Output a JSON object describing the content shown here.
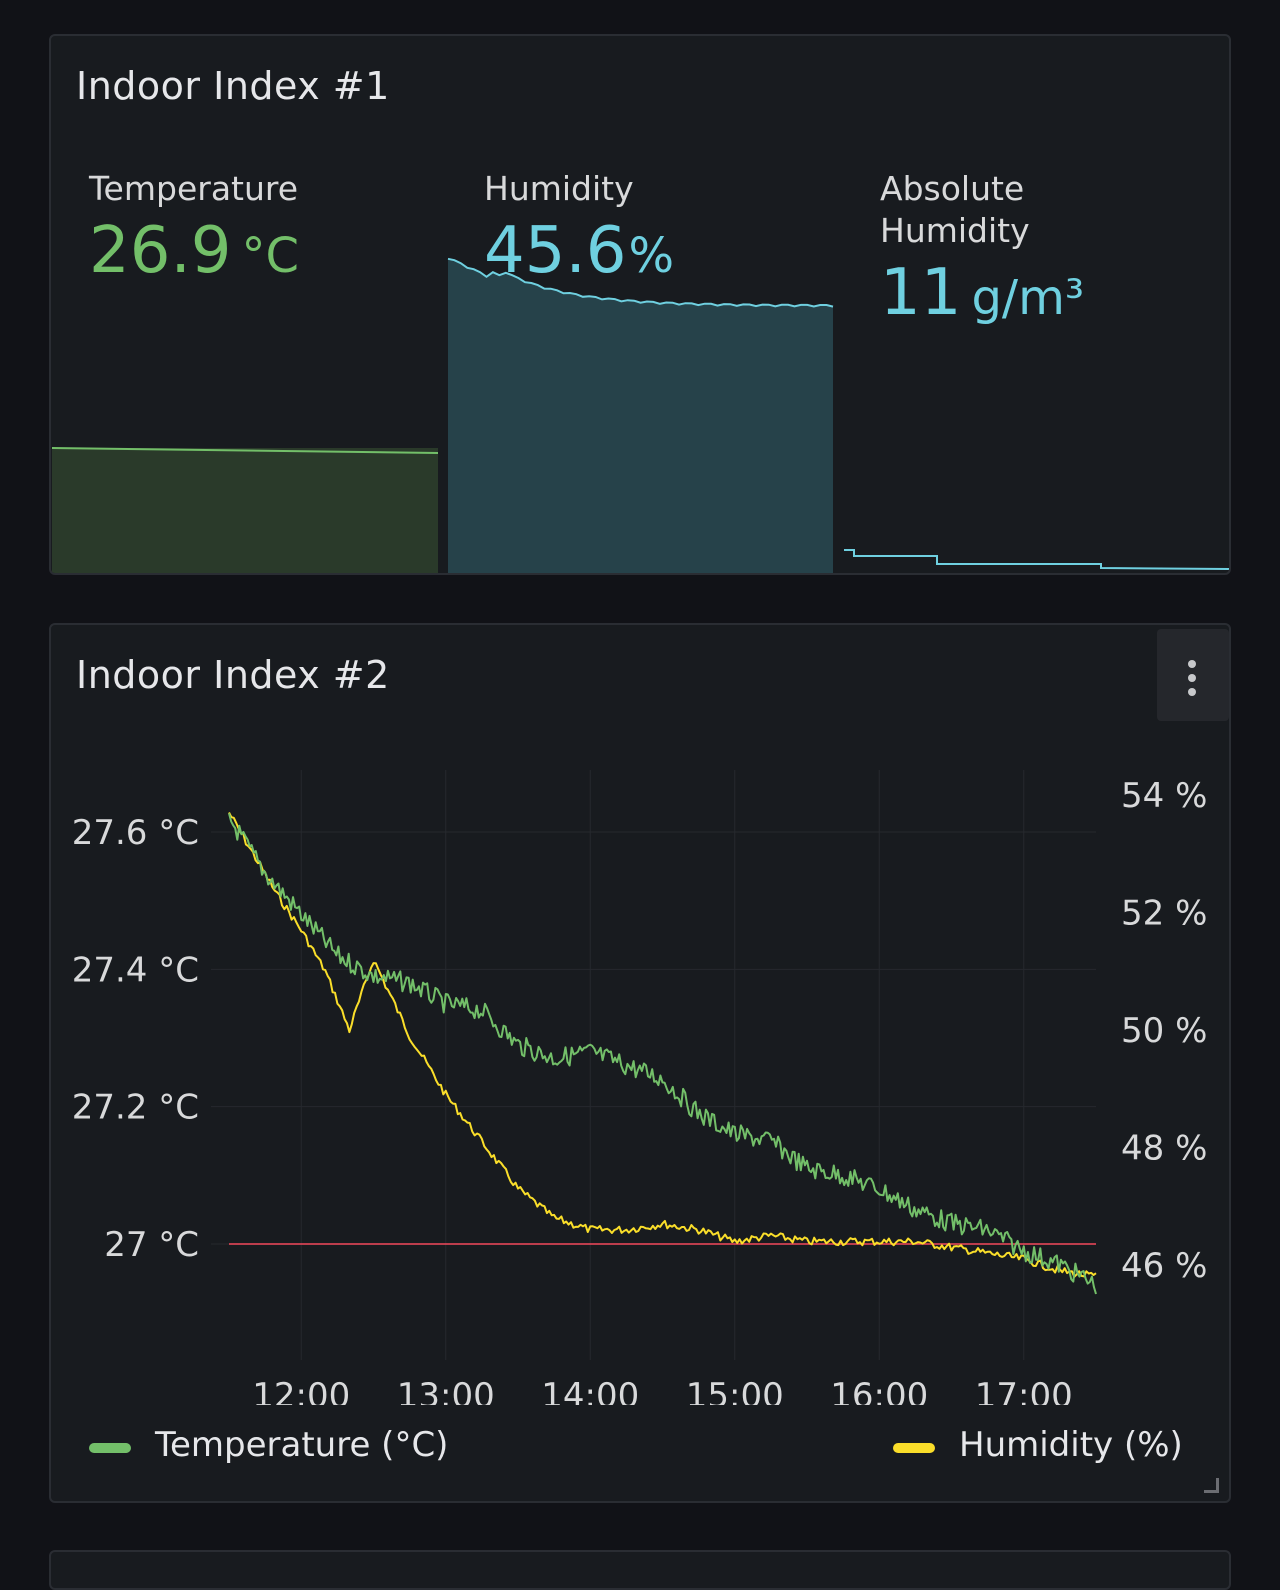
{
  "panel1": {
    "title": "Indoor Index #1",
    "stats": [
      {
        "label": "Temperature",
        "value": "26.9",
        "unit": "°C",
        "color": "#73bf69"
      },
      {
        "label": "Humidity",
        "value": "45.6",
        "unit": "%",
        "color": "#6fd0e0"
      },
      {
        "label": "Absolute Humidity",
        "value": "11",
        "unit": "g/m³",
        "color": "#6fd0e0"
      }
    ]
  },
  "panel2": {
    "title": "Indoor Index #2",
    "menu_icon": "vertical-dots-icon",
    "legend": [
      {
        "label": "Temperature (°C)",
        "color": "#73bf69"
      },
      {
        "label": "Humidity (%)",
        "color": "#fade2a"
      }
    ]
  },
  "chart_data": {
    "type": "line",
    "x_ticks": [
      "12:00",
      "13:00",
      "14:00",
      "15:00",
      "16:00",
      "17:00"
    ],
    "x_range": [
      "11:30",
      "17:30"
    ],
    "y_left_ticks": [
      "27.6 °C",
      "27.4 °C",
      "27.2 °C",
      "27 °C"
    ],
    "y_right_ticks": [
      "54 %",
      "52 %",
      "50 %",
      "48 %",
      "46 %"
    ],
    "y_left_range": [
      26.92,
      27.64
    ],
    "y_right_range": [
      45.5,
      54
    ],
    "threshold": {
      "axis": "left",
      "value": 27,
      "color": "#f2495c"
    },
    "grid": true,
    "legend_placement": "bottom",
    "series": [
      {
        "name": "Temperature (°C)",
        "axis": "left",
        "color": "#73bf69",
        "x": [
          "11:30",
          "11:45",
          "12:00",
          "12:15",
          "12:30",
          "12:45",
          "13:00",
          "13:15",
          "13:30",
          "13:45",
          "14:00",
          "14:15",
          "14:30",
          "14:45",
          "15:00",
          "15:15",
          "15:30",
          "15:45",
          "16:00",
          "16:15",
          "16:30",
          "16:45",
          "17:00",
          "17:15",
          "17:30"
        ],
        "values": [
          27.62,
          27.54,
          27.48,
          27.42,
          27.39,
          27.38,
          27.35,
          27.34,
          27.29,
          27.27,
          27.28,
          27.26,
          27.24,
          27.19,
          27.16,
          27.15,
          27.11,
          27.1,
          27.08,
          27.05,
          27.03,
          27.02,
          26.99,
          26.97,
          26.94
        ]
      },
      {
        "name": "Humidity (%)",
        "axis": "right",
        "color": "#fade2a",
        "x": [
          "11:30",
          "11:40",
          "11:50",
          "12:00",
          "12:10",
          "12:20",
          "12:30",
          "12:45",
          "13:00",
          "13:15",
          "13:30",
          "13:45",
          "14:00",
          "14:15",
          "14:30",
          "14:45",
          "15:00",
          "15:15",
          "15:30",
          "15:45",
          "16:00",
          "16:15",
          "16:30",
          "16:45",
          "17:00",
          "17:15",
          "17:30"
        ],
        "values": [
          53.7,
          53.0,
          52.3,
          51.7,
          51.0,
          50.0,
          51.2,
          49.9,
          48.9,
          48.1,
          47.3,
          46.8,
          46.6,
          46.6,
          46.7,
          46.6,
          46.4,
          46.5,
          46.4,
          46.4,
          46.4,
          46.4,
          46.3,
          46.2,
          46.1,
          45.9,
          45.8
        ]
      }
    ]
  }
}
